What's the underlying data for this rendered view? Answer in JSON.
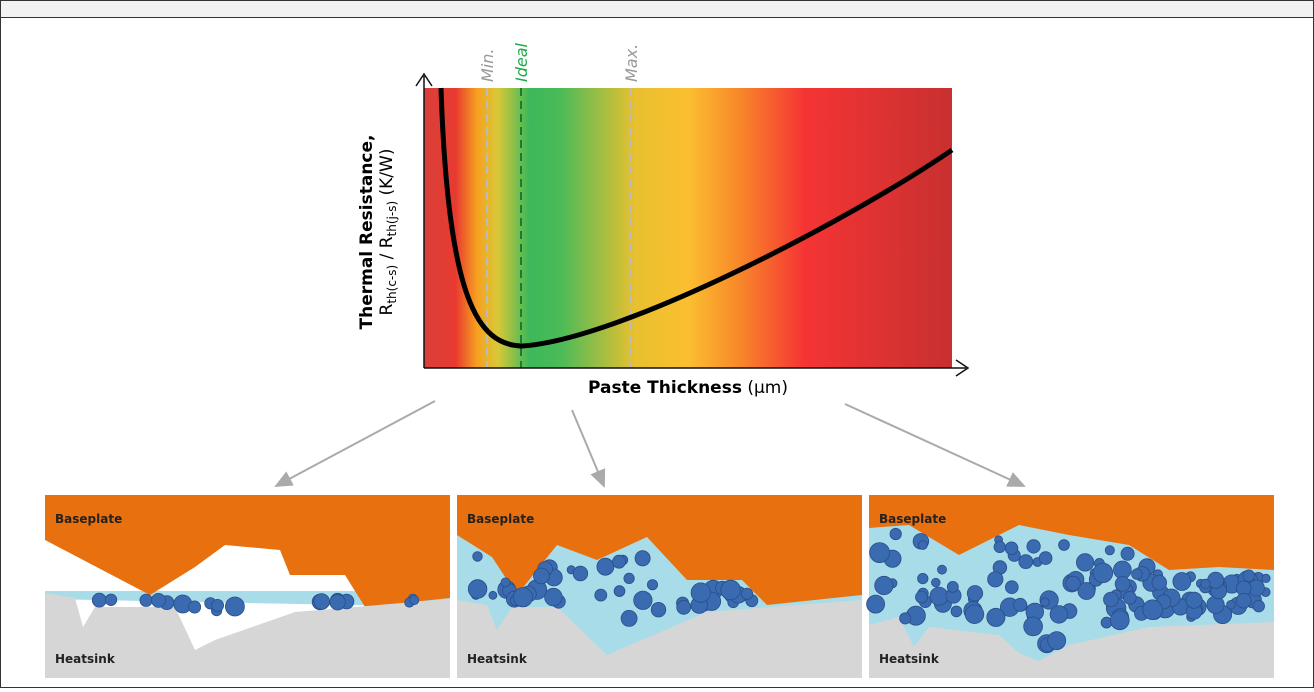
{
  "chart": {
    "markers": {
      "min": "Min.",
      "ideal": "Ideal",
      "max": "Max."
    },
    "y_label": {
      "title": "Thermal Resistance,",
      "r1": "R",
      "sub1": "th(c-s)",
      "sep": " / R",
      "sub2": "th(j-s)",
      "unit": " (K/W)"
    },
    "x_label": {
      "title": "Paste Thickness",
      "unit": " (µm)"
    }
  },
  "panels": [
    {
      "top_label": "Baseplate",
      "bottom_label": "Heatsink"
    },
    {
      "top_label": "Baseplate",
      "bottom_label": "Heatsink"
    },
    {
      "top_label": "Baseplate",
      "bottom_label": "Heatsink"
    }
  ]
}
